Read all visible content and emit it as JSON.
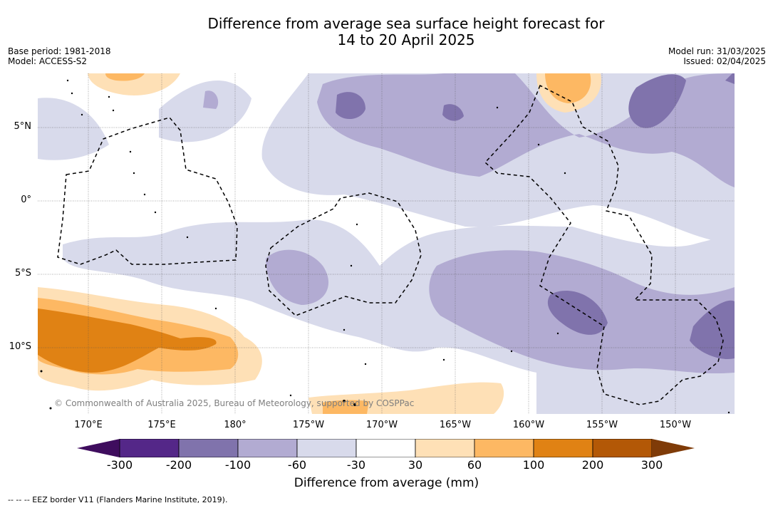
{
  "title_line1": "Difference from average sea surface height forecast for",
  "title_line2": "14 to 20 April 2025",
  "base_period": "Base period: 1981-2018",
  "model": "Model: ACCESS-S2",
  "model_run": "Model run: 31/03/2025",
  "issued": "Issued: 02/04/2025",
  "lat_ticks": [
    "5°N",
    "0°",
    "5°S",
    "10°S"
  ],
  "lon_ticks": [
    "170°E",
    "175°E",
    "180°",
    "175°W",
    "170°W",
    "165°W",
    "160°W",
    "155°W",
    "150°W"
  ],
  "copyright": "© Commonwealth of Australia 2025, Bureau of Meteorology, supported by COSPPac",
  "colorbar": {
    "labels": [
      "-300",
      "-200",
      "-100",
      "-60",
      "-30",
      "30",
      "60",
      "100",
      "200",
      "300"
    ],
    "colors": [
      "#3f0d5e",
      "#542788",
      "#8073ac",
      "#b2abd2",
      "#d8daeb",
      "#ffffff",
      "#fee0b6",
      "#fdb863",
      "#e08214",
      "#b35806",
      "#7f3b08"
    ],
    "title": "Difference from average (mm)"
  },
  "legend_footer": "--  --  -- EEZ border V11 (Flanders Marine Institute, 2019)."
}
